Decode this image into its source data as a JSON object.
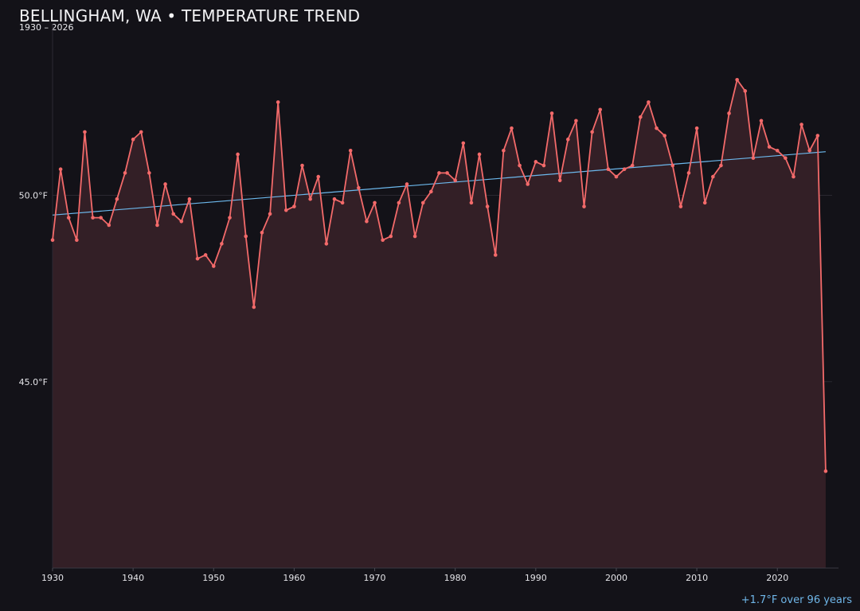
{
  "chart_data": {
    "type": "line",
    "title": "BELLINGHAM, WA • TEMPERATURE TREND",
    "subtitle": "1930 – 2026",
    "xlabel": "",
    "ylabel": "",
    "xlim": [
      1930,
      2026.8
    ],
    "ylim": [
      40.0,
      54.6
    ],
    "x_ticks": [
      1930,
      1940,
      1950,
      1960,
      1970,
      1980,
      1990,
      2000,
      2010,
      2020
    ],
    "y_ticks": [
      45.0,
      50.0
    ],
    "y_tick_labels": [
      "45.0°F",
      "50.0°F"
    ],
    "x_tick_labels": [
      "1930",
      "1940",
      "1950",
      "1960",
      "1970",
      "1980",
      "1990",
      "2000",
      "2010",
      "2020"
    ],
    "grid": "horizontal",
    "legend": "none",
    "colors": {
      "series": "#f36a6a",
      "area": "#331f26",
      "trend": "#6cb8ec",
      "background": "#131218"
    },
    "x": [
      1930,
      1931,
      1932,
      1933,
      1934,
      1935,
      1936,
      1937,
      1938,
      1939,
      1940,
      1941,
      1942,
      1943,
      1944,
      1945,
      1946,
      1947,
      1948,
      1949,
      1950,
      1951,
      1952,
      1953,
      1954,
      1955,
      1956,
      1957,
      1958,
      1959,
      1960,
      1961,
      1962,
      1963,
      1964,
      1965,
      1966,
      1967,
      1968,
      1969,
      1970,
      1971,
      1972,
      1973,
      1974,
      1975,
      1976,
      1977,
      1978,
      1979,
      1980,
      1981,
      1982,
      1983,
      1984,
      1985,
      1986,
      1987,
      1988,
      1989,
      1990,
      1991,
      1992,
      1993,
      1994,
      1995,
      1996,
      1997,
      1998,
      1999,
      2000,
      2001,
      2002,
      2003,
      2004,
      2005,
      2006,
      2007,
      2008,
      2009,
      2010,
      2011,
      2012,
      2013,
      2014,
      2015,
      2016,
      2017,
      2018,
      2019,
      2020,
      2021,
      2022,
      2023,
      2024,
      2025,
      2026
    ],
    "series": [
      {
        "values": [
          48.8,
          50.7,
          49.4,
          48.8,
          51.7,
          49.4,
          49.4,
          49.2,
          49.9,
          50.6,
          51.5,
          51.7,
          50.6,
          49.2,
          50.3,
          49.5,
          49.3,
          49.9,
          48.3,
          48.4,
          48.1,
          48.7,
          49.4,
          51.1,
          48.9,
          47.0,
          49.0,
          49.5,
          52.5,
          49.6,
          49.7,
          50.8,
          49.9,
          50.5,
          48.7,
          49.9,
          49.8,
          51.2,
          50.2,
          49.3,
          49.8,
          48.8,
          48.9,
          49.8,
          50.3,
          48.9,
          49.8,
          50.1,
          50.6,
          50.6,
          50.4,
          51.4,
          49.8,
          51.1,
          49.7,
          48.4,
          51.2,
          51.8,
          50.8,
          50.3,
          50.9,
          50.8,
          52.2,
          50.4,
          51.5,
          52.0,
          49.7,
          51.7,
          52.3,
          50.7,
          50.5,
          50.7,
          50.8,
          52.1,
          52.5,
          51.8,
          51.6,
          50.8,
          49.7,
          50.6,
          51.8,
          49.8,
          50.5,
          50.8,
          52.2,
          53.1,
          52.8,
          51.0,
          52.0,
          51.3,
          51.2,
          51.0,
          50.5,
          51.9,
          51.2,
          51.6,
          42.6
        ]
      }
    ],
    "trend": {
      "start": [
        1930,
        49.47
      ],
      "end": [
        2026,
        51.17
      ]
    }
  },
  "footer": {
    "note": "+1.7°F over 96 years"
  }
}
